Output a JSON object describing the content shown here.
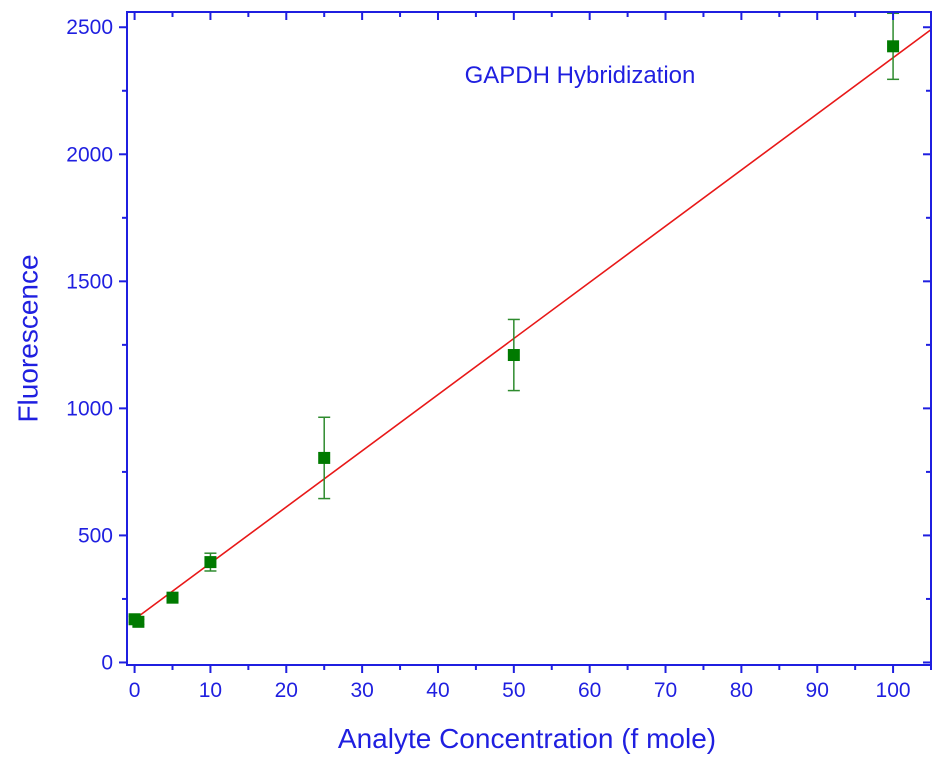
{
  "chart_data": {
    "type": "scatter",
    "title": "",
    "annotation": "GAPDH Hybridization",
    "xlabel": "Analyte Concentration (f mole)",
    "ylabel": "Fluorescence",
    "xlim": [
      -1,
      105
    ],
    "ylim": [
      -10,
      2560
    ],
    "x_ticks": [
      0,
      10,
      20,
      30,
      40,
      50,
      60,
      70,
      80,
      90,
      100
    ],
    "y_ticks": [
      0,
      500,
      1000,
      1500,
      2000,
      2500
    ],
    "x_minor_step": 5,
    "y_minor_step": 250,
    "grid": false,
    "legend": "none",
    "points": [
      {
        "x": 0,
        "y": 170,
        "err": 12
      },
      {
        "x": 0.5,
        "y": 160,
        "err": 10
      },
      {
        "x": 5,
        "y": 255,
        "err": 10
      },
      {
        "x": 10,
        "y": 395,
        "err": 35
      },
      {
        "x": 25,
        "y": 805,
        "err": 160
      },
      {
        "x": 50,
        "y": 1210,
        "err": 140
      },
      {
        "x": 100,
        "y": 2425,
        "err": 130
      }
    ],
    "fit_line": {
      "slope": 22.1,
      "intercept": 170
    },
    "colors": {
      "axis": "#1f1fe0",
      "text": "#1f1fe0",
      "points": "#007a00",
      "errorbars": "#2e8b2e",
      "fit": "#e81818"
    }
  }
}
